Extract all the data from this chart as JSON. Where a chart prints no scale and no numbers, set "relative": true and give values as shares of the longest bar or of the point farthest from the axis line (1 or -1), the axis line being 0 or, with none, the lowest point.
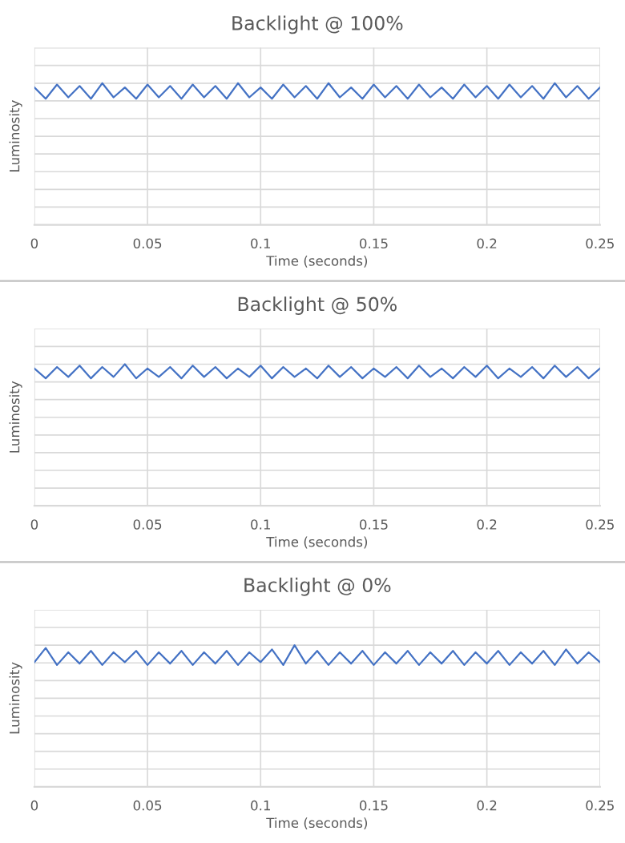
{
  "chart_data": [
    {
      "type": "line",
      "title": "Backlight @ 100%",
      "xlabel": "Time (seconds)",
      "ylabel": "Luminosity",
      "relative": true,
      "grid": true,
      "xlim": [
        0,
        0.25
      ],
      "xticks": [
        0,
        0.05,
        0.1,
        0.15,
        0.2,
        0.25
      ],
      "x": [
        0,
        0.005,
        0.01,
        0.015,
        0.02,
        0.025,
        0.03,
        0.035,
        0.04,
        0.045,
        0.05,
        0.055,
        0.06,
        0.065,
        0.07,
        0.075,
        0.08,
        0.085,
        0.09,
        0.095,
        0.1,
        0.105,
        0.11,
        0.115,
        0.12,
        0.125,
        0.13,
        0.135,
        0.14,
        0.145,
        0.15,
        0.155,
        0.16,
        0.165,
        0.17,
        0.175,
        0.18,
        0.185,
        0.19,
        0.195,
        0.2,
        0.205,
        0.21,
        0.215,
        0.22,
        0.225,
        0.23,
        0.235,
        0.24,
        0.245,
        0.25
      ],
      "series": [
        {
          "color": "#4472c4",
          "values": [
            0.97,
            0.89,
            0.99,
            0.9,
            0.98,
            0.89,
            1,
            0.9,
            0.97,
            0.89,
            0.99,
            0.9,
            0.98,
            0.89,
            0.99,
            0.9,
            0.98,
            0.89,
            1,
            0.9,
            0.97,
            0.89,
            0.99,
            0.9,
            0.98,
            0.89,
            1,
            0.9,
            0.97,
            0.89,
            0.99,
            0.9,
            0.98,
            0.89,
            0.99,
            0.9,
            0.97,
            0.89,
            0.99,
            0.9,
            0.98,
            0.89,
            0.99,
            0.9,
            0.98,
            0.89,
            1,
            0.9,
            0.98,
            0.89,
            0.97
          ]
        }
      ]
    },
    {
      "type": "line",
      "title": "Backlight @ 50%",
      "xlabel": "Time (seconds)",
      "ylabel": "Luminosity",
      "relative": true,
      "grid": true,
      "xlim": [
        0,
        0.25
      ],
      "xticks": [
        0,
        0.05,
        0.1,
        0.15,
        0.2,
        0.25
      ],
      "x": [
        0,
        0.005,
        0.01,
        0.015,
        0.02,
        0.025,
        0.03,
        0.035,
        0.04,
        0.045,
        0.05,
        0.055,
        0.06,
        0.065,
        0.07,
        0.075,
        0.08,
        0.085,
        0.09,
        0.095,
        0.1,
        0.105,
        0.11,
        0.115,
        0.12,
        0.125,
        0.13,
        0.135,
        0.14,
        0.145,
        0.15,
        0.155,
        0.16,
        0.165,
        0.17,
        0.175,
        0.18,
        0.185,
        0.19,
        0.195,
        0.2,
        0.205,
        0.21,
        0.215,
        0.22,
        0.225,
        0.23,
        0.235,
        0.24,
        0.245,
        0.25
      ],
      "series": [
        {
          "color": "#4472c4",
          "values": [
            0.97,
            0.9,
            0.98,
            0.91,
            0.99,
            0.9,
            0.98,
            0.91,
            1,
            0.9,
            0.97,
            0.91,
            0.98,
            0.9,
            0.99,
            0.91,
            0.98,
            0.9,
            0.97,
            0.91,
            0.99,
            0.9,
            0.98,
            0.91,
            0.97,
            0.9,
            0.99,
            0.91,
            0.98,
            0.9,
            0.97,
            0.91,
            0.98,
            0.9,
            0.99,
            0.91,
            0.97,
            0.9,
            0.98,
            0.91,
            0.99,
            0.9,
            0.97,
            0.91,
            0.98,
            0.9,
            0.99,
            0.91,
            0.98,
            0.9,
            0.97
          ]
        }
      ]
    },
    {
      "type": "line",
      "title": "Backlight @ 0%",
      "xlabel": "Time (seconds)",
      "ylabel": "Luminosity",
      "relative": true,
      "grid": true,
      "xlim": [
        0,
        0.25
      ],
      "xticks": [
        0,
        0.05,
        0.1,
        0.15,
        0.2,
        0.25
      ],
      "x": [
        0,
        0.005,
        0.01,
        0.015,
        0.02,
        0.025,
        0.03,
        0.035,
        0.04,
        0.045,
        0.05,
        0.055,
        0.06,
        0.065,
        0.07,
        0.075,
        0.08,
        0.085,
        0.09,
        0.095,
        0.1,
        0.105,
        0.11,
        0.115,
        0.12,
        0.125,
        0.13,
        0.135,
        0.14,
        0.145,
        0.15,
        0.155,
        0.16,
        0.165,
        0.17,
        0.175,
        0.18,
        0.185,
        0.19,
        0.195,
        0.2,
        0.205,
        0.21,
        0.215,
        0.22,
        0.225,
        0.23,
        0.235,
        0.24,
        0.245,
        0.25
      ],
      "series": [
        {
          "color": "#4472c4",
          "values": [
            0.88,
            0.98,
            0.86,
            0.95,
            0.87,
            0.96,
            0.86,
            0.95,
            0.88,
            0.96,
            0.86,
            0.95,
            0.87,
            0.96,
            0.86,
            0.95,
            0.87,
            0.96,
            0.86,
            0.95,
            0.88,
            0.97,
            0.86,
            1,
            0.87,
            0.96,
            0.86,
            0.95,
            0.87,
            0.96,
            0.86,
            0.95,
            0.87,
            0.96,
            0.86,
            0.95,
            0.87,
            0.96,
            0.86,
            0.95,
            0.87,
            0.96,
            0.86,
            0.95,
            0.87,
            0.96,
            0.86,
            0.97,
            0.87,
            0.95,
            0.88
          ]
        }
      ]
    }
  ]
}
